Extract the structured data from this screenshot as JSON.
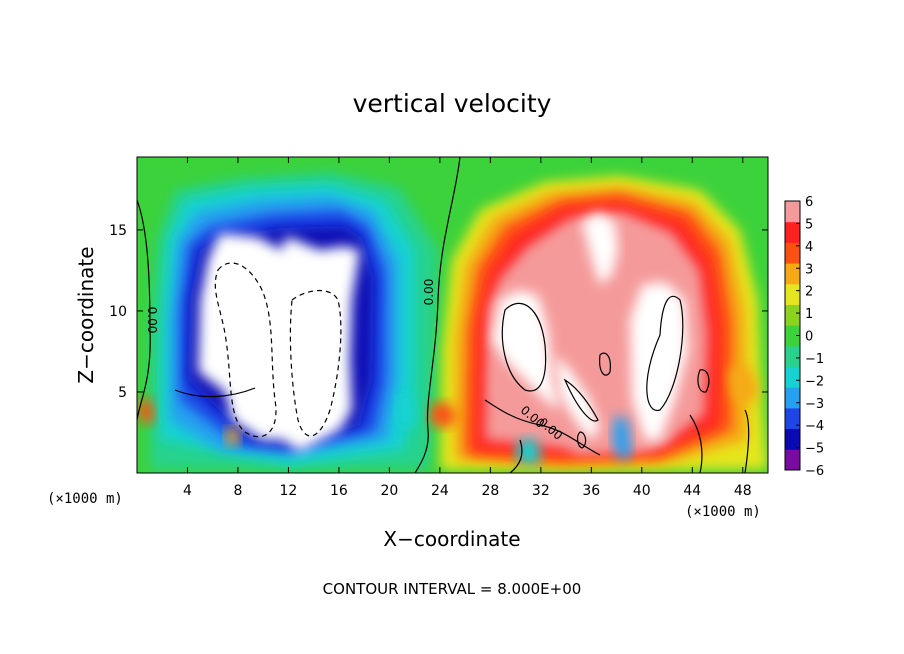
{
  "chart_data": {
    "type": "heatmap",
    "title": "vertical velocity",
    "xlabel": "X−coordinate",
    "ylabel": "Z−coordinate",
    "x_unit_left": "(×1000 m)",
    "x_unit_right": "(×1000 m)",
    "xlim": [
      0,
      50
    ],
    "ylim": [
      0,
      19.5
    ],
    "x_ticks": [
      4,
      8,
      12,
      16,
      20,
      24,
      28,
      32,
      36,
      40,
      44,
      48
    ],
    "y_ticks": [
      5,
      10,
      15
    ],
    "colorbar": {
      "range": [
        -6,
        6
      ],
      "ticks": [
        6,
        5,
        4,
        3,
        2,
        1,
        0,
        -1,
        -2,
        -3,
        -4,
        -5,
        -6
      ],
      "tick_labels": [
        "6",
        "5",
        "4",
        "3",
        "2",
        "1",
        "0",
        "−1",
        "−2",
        "−3",
        "−4",
        "−5",
        "−6"
      ],
      "colors": [
        "#7a0aa0",
        "#0a0ab4",
        "#1e46e6",
        "#28a0f0",
        "#14d2d2",
        "#28d28c",
        "#3cd23c",
        "#8cd21e",
        "#e6e61e",
        "#f5aa14",
        "#ff5014",
        "#ff2020",
        "#f59a9a"
      ]
    },
    "contour_labels": [
      "0.00",
      "0.00",
      "0.00",
      "0.00"
    ],
    "footer": "CONTOUR INTERVAL = 8.000E+00",
    "features": [
      {
        "kind": "downdraft",
        "x": 10.5,
        "z": 10.0,
        "value": -8
      },
      {
        "kind": "downdraft",
        "x": 15.0,
        "z": 8.5,
        "value": -8
      },
      {
        "kind": "updraft",
        "x": 30.5,
        "z": 8.5,
        "value": 8
      },
      {
        "kind": "updraft",
        "x": 36.5,
        "z": 15.5,
        "value": 8
      },
      {
        "kind": "updraft",
        "x": 41.5,
        "z": 8.5,
        "value": 8
      }
    ]
  }
}
